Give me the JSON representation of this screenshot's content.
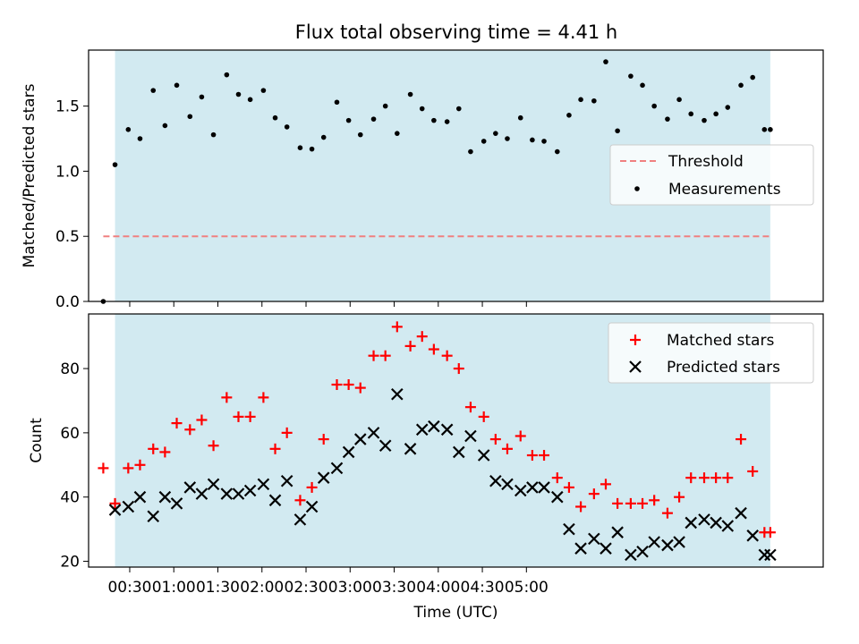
{
  "title": "Flux total observing time = 4.41 h",
  "colors": {
    "shade": "#add8e6",
    "threshold": "#f08080",
    "measurement": "#000000",
    "matched": "#ff0000",
    "predicted": "#000000"
  },
  "chart_data": [
    {
      "type": "scatter",
      "panel": "top",
      "title": "Flux total observing time = 4.41 h",
      "xlabel": "",
      "ylabel": "Matched/Predicted stars",
      "x_unit": "minutes after 00:00 UTC",
      "xlim": [
        2,
        502
      ],
      "ylim": [
        0,
        1.93
      ],
      "yticks": [
        0.0,
        0.5,
        1.0,
        1.5
      ],
      "ytick_labels": [
        "0.0",
        "0.5",
        "1.0",
        "1.5"
      ],
      "shaded_interval": [
        20,
        466
      ],
      "threshold": {
        "name": "Threshold",
        "value": 0.5,
        "x": [
          12,
          466
        ]
      },
      "legend": {
        "placement": "center-right",
        "entries": [
          "Threshold",
          "Measurements"
        ]
      },
      "series": [
        {
          "name": "Measurements",
          "x": [
            12,
            20,
            29,
            37,
            46,
            54,
            62,
            71,
            79,
            87,
            96,
            104,
            112,
            121,
            129,
            137,
            146,
            154,
            162,
            171,
            179,
            187,
            196,
            204,
            212,
            221,
            229,
            237,
            246,
            254,
            262,
            271,
            279,
            287,
            296,
            304,
            312,
            321,
            329,
            337,
            346,
            354,
            362,
            371,
            379,
            387,
            396,
            404,
            412,
            421,
            429,
            437,
            446,
            454,
            462,
            466
          ],
          "y": [
            0.0,
            1.05,
            1.32,
            1.25,
            1.62,
            1.35,
            1.66,
            1.42,
            1.57,
            1.28,
            1.74,
            1.59,
            1.55,
            1.62,
            1.41,
            1.34,
            1.18,
            1.17,
            1.26,
            1.53,
            1.39,
            1.28,
            1.4,
            1.5,
            1.29,
            1.59,
            1.48,
            1.39,
            1.38,
            1.48,
            1.15,
            1.23,
            1.29,
            1.25,
            1.41,
            1.24,
            1.23,
            1.15,
            1.43,
            1.55,
            1.54,
            1.84,
            1.31,
            1.73,
            1.66,
            1.5,
            1.4,
            1.55,
            1.44,
            1.39,
            1.44,
            1.49,
            1.66,
            1.72,
            1.32,
            1.32
          ]
        }
      ]
    },
    {
      "type": "scatter",
      "panel": "bottom",
      "title": "",
      "xlabel": "Time (UTC)",
      "ylabel": "Count",
      "x_unit": "minutes after 00:00 UTC",
      "xlim": [
        2,
        502
      ],
      "ylim": [
        18.2,
        97
      ],
      "yticks": [
        20,
        40,
        60,
        80
      ],
      "ytick_labels": [
        "20",
        "40",
        "60",
        "80"
      ],
      "xticks": [
        30,
        60,
        90,
        120,
        150,
        180,
        210,
        240,
        270,
        300
      ],
      "xtick_labels": [
        "00:30",
        "01:00",
        "01:30",
        "02:00",
        "02:30",
        "03:00",
        "03:30",
        "04:00",
        "04:30",
        "05:00"
      ],
      "shaded_interval": [
        20,
        466
      ],
      "legend": {
        "placement": "top-right",
        "entries": [
          "Matched stars",
          "Predicted stars"
        ]
      },
      "series": [
        {
          "name": "Matched stars",
          "x": [
            12,
            20,
            29,
            37,
            46,
            54,
            62,
            71,
            79,
            87,
            96,
            104,
            112,
            121,
            129,
            137,
            146,
            154,
            162,
            171,
            179,
            187,
            196,
            204,
            212,
            221,
            229,
            237,
            246,
            254,
            262,
            271,
            279,
            287,
            296,
            304,
            312,
            321,
            329,
            337,
            346,
            354,
            362,
            371,
            379,
            387,
            396,
            404,
            412,
            421,
            429,
            437,
            446,
            454,
            462,
            466
          ],
          "y": [
            49,
            38,
            49,
            50,
            55,
            54,
            63,
            61,
            64,
            56,
            71,
            65,
            65,
            71,
            55,
            60,
            39,
            43,
            58,
            75,
            75,
            74,
            84,
            84,
            93,
            87,
            90,
            86,
            84,
            80,
            68,
            65,
            58,
            55,
            59,
            53,
            53,
            46,
            43,
            37,
            41,
            44,
            38,
            38,
            38,
            39,
            35,
            40,
            46,
            46,
            46,
            46,
            58,
            48,
            29,
            29
          ]
        },
        {
          "name": "Predicted stars",
          "x": [
            20,
            29,
            37,
            46,
            54,
            62,
            71,
            79,
            87,
            96,
            104,
            112,
            121,
            129,
            137,
            146,
            154,
            162,
            171,
            179,
            187,
            196,
            204,
            212,
            221,
            229,
            237,
            246,
            254,
            262,
            271,
            279,
            287,
            296,
            304,
            312,
            321,
            329,
            337,
            346,
            354,
            362,
            371,
            379,
            387,
            396,
            404,
            412,
            421,
            429,
            437,
            446,
            454,
            462,
            466
          ],
          "y": [
            36,
            37,
            40,
            34,
            40,
            38,
            43,
            41,
            44,
            41,
            41,
            42,
            44,
            39,
            45,
            33,
            37,
            46,
            49,
            54,
            58,
            60,
            56,
            72,
            55,
            61,
            62,
            61,
            54,
            59,
            53,
            45,
            44,
            42,
            43,
            43,
            40,
            30,
            24,
            27,
            24,
            29,
            22,
            23,
            26,
            25,
            26,
            32,
            33,
            32,
            31,
            35,
            28,
            22,
            22
          ]
        }
      ]
    }
  ]
}
